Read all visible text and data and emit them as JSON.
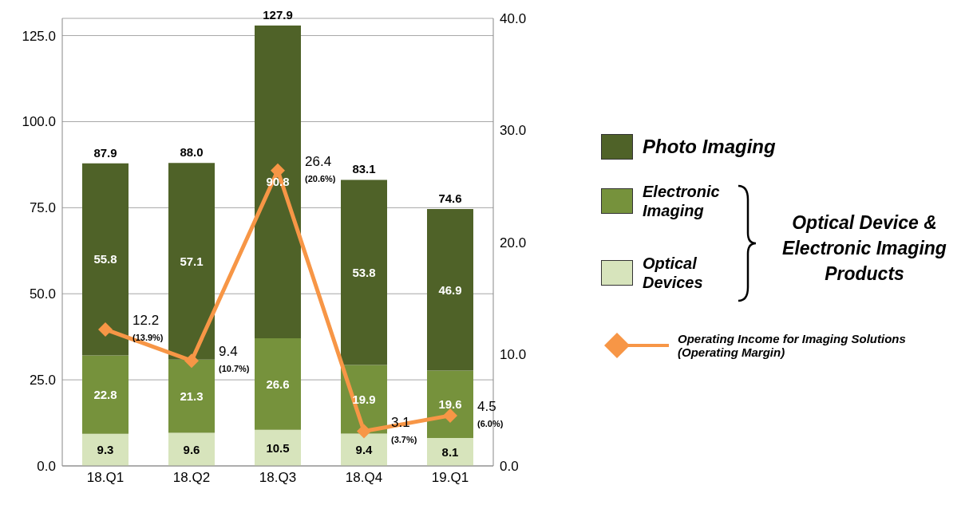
{
  "chart_data": {
    "type": "bar",
    "stacked": true,
    "categories": [
      "18.Q1",
      "18.Q2",
      "18.Q3",
      "18.Q4",
      "19.Q1"
    ],
    "series": [
      {
        "name": "Optical Devices",
        "color": "#d7e4bc",
        "values": [
          9.3,
          9.6,
          10.5,
          9.4,
          8.1
        ]
      },
      {
        "name": "Electronic Imaging",
        "color": "#76923c",
        "values": [
          22.8,
          21.3,
          26.6,
          19.9,
          19.6
        ]
      },
      {
        "name": "Photo Imaging",
        "color": "#4f6228",
        "values": [
          55.8,
          57.1,
          90.8,
          53.8,
          46.9
        ]
      },
      {
        "name": "Operating Income for Imaging Solutions (Operating Margin)",
        "type": "line",
        "axis": "y2",
        "color": "#f79646",
        "marker": "diamond",
        "values": [
          12.2,
          9.4,
          26.4,
          3.1,
          4.5
        ]
      }
    ],
    "totals": [
      "87.9",
      "88.0",
      "127.9",
      "83.1",
      "74.6"
    ],
    "data_labels": true,
    "ylim": [
      0,
      130
    ],
    "yticks": [
      {
        "value": 0,
        "label": "0.0"
      },
      {
        "value": 25,
        "label": "25.0"
      },
      {
        "value": 50,
        "label": "50.0"
      },
      {
        "value": 75,
        "label": "75.0"
      },
      {
        "value": 100,
        "label": "100.0"
      },
      {
        "value": 125,
        "label": "125.0"
      }
    ],
    "y2lim": [
      0,
      40
    ],
    "y2ticks": [
      {
        "value": 0,
        "label": "0.0"
      },
      {
        "value": 10,
        "label": "10.0"
      },
      {
        "value": 20,
        "label": "20.0"
      },
      {
        "value": 30,
        "label": "30.0"
      },
      {
        "value": 40,
        "label": "40.0"
      }
    ],
    "grid": "y",
    "legend": "right",
    "annotations": [
      "Optical Device & Electronic Imaging Products",
      "(13.9%)",
      "(10.7%)",
      "(20.6%)",
      "(3.7%)",
      "(6.0%)"
    ]
  }
}
